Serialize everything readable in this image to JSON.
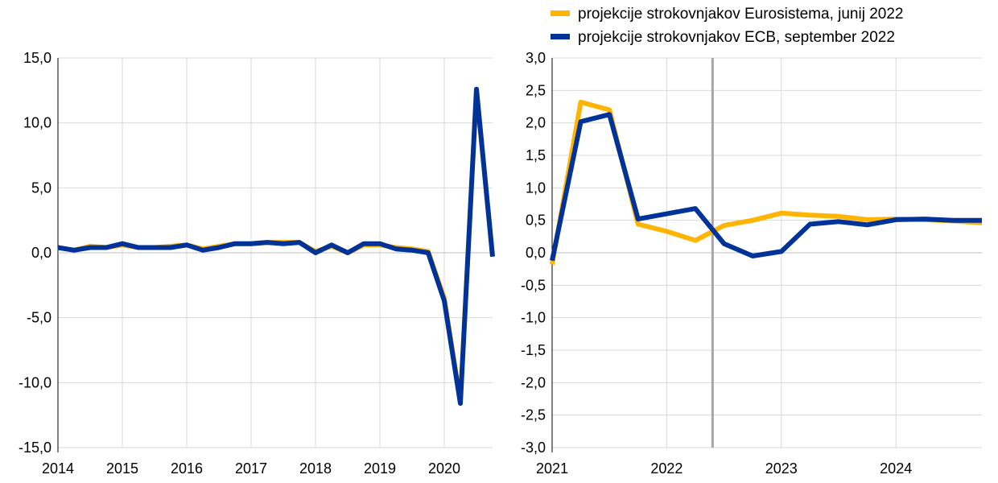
{
  "legend": [
    {
      "label": "projekcije strokovnjakov Eurosistema, junij 2022",
      "color": "#FFB400"
    },
    {
      "label": "projekcije strokovnjakov ECB, september 2022",
      "color": "#003399"
    }
  ],
  "chart_data": [
    {
      "type": "line",
      "title": "",
      "xlabel": "",
      "ylabel": "",
      "ylim": [
        -15,
        15
      ],
      "xlim": [
        2014,
        2020.75
      ],
      "y_ticks": [
        "-15,0",
        "-10,0",
        "-5,0",
        "0,0",
        "5,0",
        "10,0",
        "15,0"
      ],
      "x_ticks": [
        "2014",
        "2015",
        "2016",
        "2017",
        "2018",
        "2019",
        "2020"
      ],
      "grid": true,
      "x": [
        2014.0,
        2014.25,
        2014.5,
        2014.75,
        2015.0,
        2015.25,
        2015.5,
        2015.75,
        2016.0,
        2016.25,
        2016.5,
        2016.75,
        2017.0,
        2017.25,
        2017.5,
        2017.75,
        2018.0,
        2018.25,
        2018.5,
        2018.75,
        2019.0,
        2019.25,
        2019.5,
        2019.75,
        2020.0,
        2020.25,
        2020.5,
        2020.75
      ],
      "series": [
        {
          "name": "projekcije strokovnjakov Eurosistema, junij 2022",
          "color": "#FFB400",
          "values": [
            0.4,
            0.2,
            0.5,
            0.4,
            0.6,
            0.4,
            0.4,
            0.5,
            0.6,
            0.3,
            0.5,
            0.7,
            0.7,
            0.8,
            0.8,
            0.8,
            0.1,
            0.5,
            0.0,
            0.6,
            0.6,
            0.4,
            0.3,
            0.1,
            -3.5,
            -11.4,
            12.5,
            -0.2
          ]
        },
        {
          "name": "projekcije strokovnjakov ECB, september 2022",
          "color": "#003399",
          "values": [
            0.4,
            0.2,
            0.4,
            0.4,
            0.7,
            0.4,
            0.4,
            0.4,
            0.6,
            0.2,
            0.4,
            0.7,
            0.7,
            0.8,
            0.7,
            0.8,
            0.0,
            0.6,
            0.0,
            0.7,
            0.7,
            0.3,
            0.2,
            0.0,
            -3.7,
            -11.6,
            12.6,
            -0.3
          ]
        }
      ]
    },
    {
      "type": "line",
      "title": "",
      "xlabel": "",
      "ylabel": "",
      "ylim": [
        -3,
        3
      ],
      "xlim": [
        2021,
        2024.75
      ],
      "y_ticks": [
        "-3,0",
        "-2,5",
        "-2,0",
        "-1,5",
        "-1,0",
        "-0,5",
        "0,0",
        "0,5",
        "1,0",
        "1,5",
        "2,0",
        "2,5",
        "3,0"
      ],
      "x_ticks": [
        "2021",
        "2022",
        "2023",
        "2024"
      ],
      "grid": true,
      "vertical_marker_x": 2022.4,
      "x": [
        2021.0,
        2021.25,
        2021.5,
        2021.75,
        2022.0,
        2022.25,
        2022.5,
        2022.75,
        2023.0,
        2023.25,
        2023.5,
        2023.75,
        2024.0,
        2024.25,
        2024.5,
        2024.75
      ],
      "series": [
        {
          "name": "projekcije strokovnjakov Eurosistema, junij 2022",
          "color": "#FFB400",
          "values": [
            -0.18,
            2.32,
            2.2,
            0.44,
            0.33,
            0.19,
            0.42,
            0.5,
            0.61,
            0.58,
            0.56,
            0.51,
            0.52,
            0.51,
            0.49,
            0.46
          ]
        },
        {
          "name": "projekcije strokovnjakov ECB, september 2022",
          "color": "#003399",
          "values": [
            -0.12,
            2.02,
            2.13,
            0.52,
            0.6,
            0.68,
            0.14,
            -0.05,
            0.02,
            0.44,
            0.48,
            0.43,
            0.51,
            0.52,
            0.5,
            0.5
          ]
        }
      ]
    }
  ]
}
